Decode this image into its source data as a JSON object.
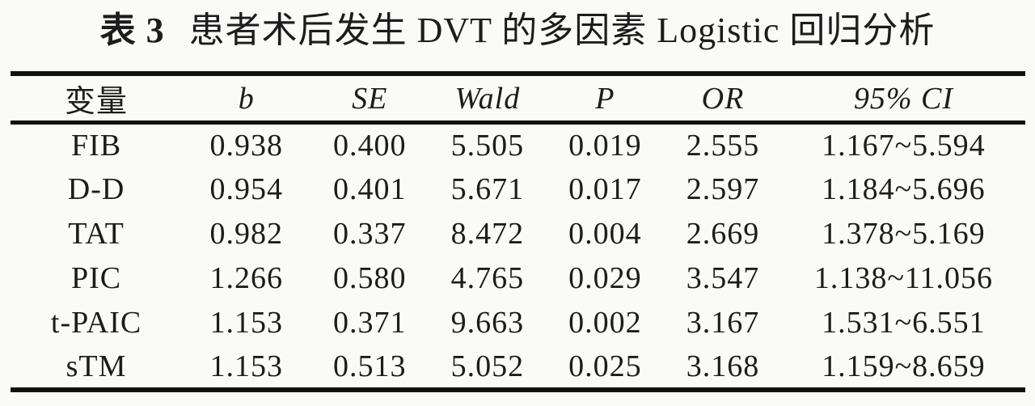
{
  "colors": {
    "background": "#fafaf8",
    "ink": "#1c1c1c",
    "rule": "#111111"
  },
  "caption": {
    "label": "表 3",
    "title": "患者术后发生 DVT 的多因素 Logistic 回归分析"
  },
  "table": {
    "headers": [
      "变量",
      "b",
      "SE",
      "Wald",
      "P",
      "OR",
      "95% CI"
    ],
    "rows": [
      [
        "FIB",
        "0.938",
        "0.400",
        "5.505",
        "0.019",
        "2.555",
        "1.167~5.594"
      ],
      [
        "D-D",
        "0.954",
        "0.401",
        "5.671",
        "0.017",
        "2.597",
        "1.184~5.696"
      ],
      [
        "TAT",
        "0.982",
        "0.337",
        "8.472",
        "0.004",
        "2.669",
        "1.378~5.169"
      ],
      [
        "PIC",
        "1.266",
        "0.580",
        "4.765",
        "0.029",
        "3.547",
        "1.138~11.056"
      ],
      [
        "t-PAIC",
        "1.153",
        "0.371",
        "9.663",
        "0.002",
        "3.167",
        "1.531~6.551"
      ],
      [
        "sTM",
        "1.153",
        "0.513",
        "5.052",
        "0.025",
        "3.168",
        "1.159~8.659"
      ]
    ]
  }
}
